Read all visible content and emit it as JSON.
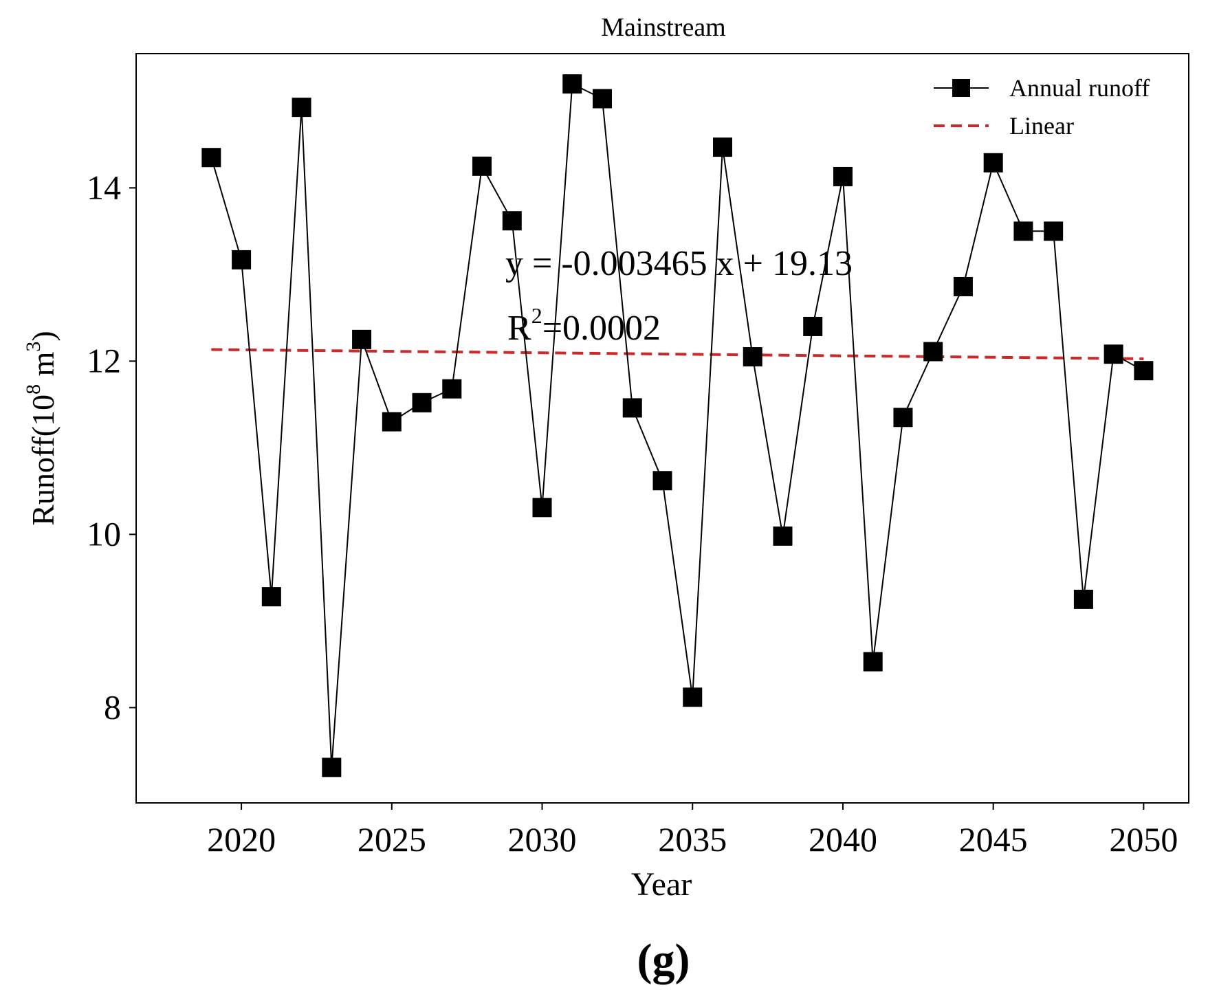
{
  "chart_data": {
    "type": "line",
    "title": "Mainstream",
    "xlabel": "Year",
    "ylabel": "Runoff(10",
    "ylabel_sup1": "8",
    "ylabel_mid": " m",
    "ylabel_sup2": "3",
    "ylabel_end": ")",
    "xlim": [
      2016.5,
      2051.5
    ],
    "ylim": [
      6.9,
      15.55
    ],
    "xticks": [
      2020,
      2025,
      2030,
      2035,
      2040,
      2045,
      2050
    ],
    "yticks": [
      8,
      10,
      12,
      14
    ],
    "series": [
      {
        "name": "Annual runoff",
        "color": "#000000",
        "marker": "square",
        "x": [
          2019,
          2020,
          2021,
          2022,
          2023,
          2024,
          2025,
          2026,
          2027,
          2028,
          2029,
          2030,
          2031,
          2032,
          2033,
          2034,
          2035,
          2036,
          2037,
          2038,
          2039,
          2040,
          2041,
          2042,
          2043,
          2044,
          2045,
          2046,
          2047,
          2048,
          2049,
          2050
        ],
        "values": [
          14.35,
          13.17,
          9.28,
          14.93,
          7.31,
          12.25,
          11.3,
          11.52,
          11.68,
          14.25,
          13.62,
          10.31,
          15.2,
          15.03,
          11.46,
          10.62,
          8.12,
          14.47,
          12.05,
          9.98,
          12.4,
          14.13,
          8.53,
          11.35,
          12.11,
          12.86,
          14.29,
          13.5,
          13.5,
          9.25,
          12.08,
          11.89
        ]
      },
      {
        "name": "Linear",
        "color": "#cc2a2a",
        "style": "dashed",
        "x": [
          2019,
          2050
        ],
        "values": [
          12.134,
          12.027
        ]
      }
    ],
    "legend": [
      "Annual runoff",
      "Linear"
    ],
    "legend_position": "top-right",
    "annotation_eq": "y = -0.003465 x + 19.13",
    "annotation_r2_prefix": "R",
    "annotation_r2_sup": "2",
    "annotation_r2_value": "=0.0002",
    "panel_label": "(g)",
    "grid": false
  }
}
